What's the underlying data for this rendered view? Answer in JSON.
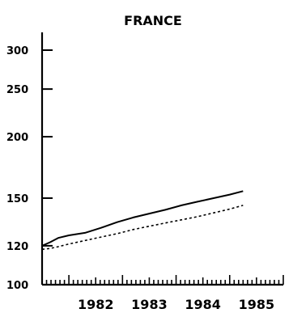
{
  "chart_data": {
    "type": "line",
    "title": "FRANCE",
    "xlabel": "",
    "ylabel": "",
    "y_scale": "log",
    "ylim": [
      100,
      300
    ],
    "xlim": [
      1981.5,
      1986
    ],
    "y_ticks": [
      100,
      120,
      150,
      200,
      250,
      300
    ],
    "y_tick_labels": [
      "100",
      "120",
      "150",
      "200",
      "250",
      "300"
    ],
    "x_tick_labels": [
      {
        "value": 1982,
        "label": "1982"
      },
      {
        "value": 1983,
        "label": "1983"
      },
      {
        "value": 1984,
        "label": "1984"
      },
      {
        "value": 1985,
        "label": "1985"
      }
    ],
    "grid": false,
    "legend": "none",
    "series": [
      {
        "style": "solid",
        "x": [
          1981.5,
          1981.65,
          1981.8,
          1982.0,
          1982.3,
          1982.6,
          1982.9,
          1983.2,
          1983.5,
          1983.8,
          1984.1,
          1984.4,
          1984.7,
          1985.0,
          1985.25
        ],
        "y": [
          120,
          122,
          124.5,
          126,
          127.5,
          130.5,
          134,
          137,
          139.5,
          142,
          145,
          147.5,
          150,
          152.5,
          155
        ]
      },
      {
        "style": "dashed",
        "x": [
          1981.5,
          1981.65,
          1981.8,
          1982.0,
          1982.3,
          1982.6,
          1982.9,
          1983.2,
          1983.5,
          1983.8,
          1984.1,
          1984.4,
          1984.7,
          1985.0,
          1985.25
        ],
        "y": [
          118,
          118.5,
          119.5,
          121,
          123,
          125,
          127,
          129.5,
          131.5,
          133.5,
          135.5,
          137.5,
          140,
          142.5,
          145
        ]
      }
    ]
  }
}
